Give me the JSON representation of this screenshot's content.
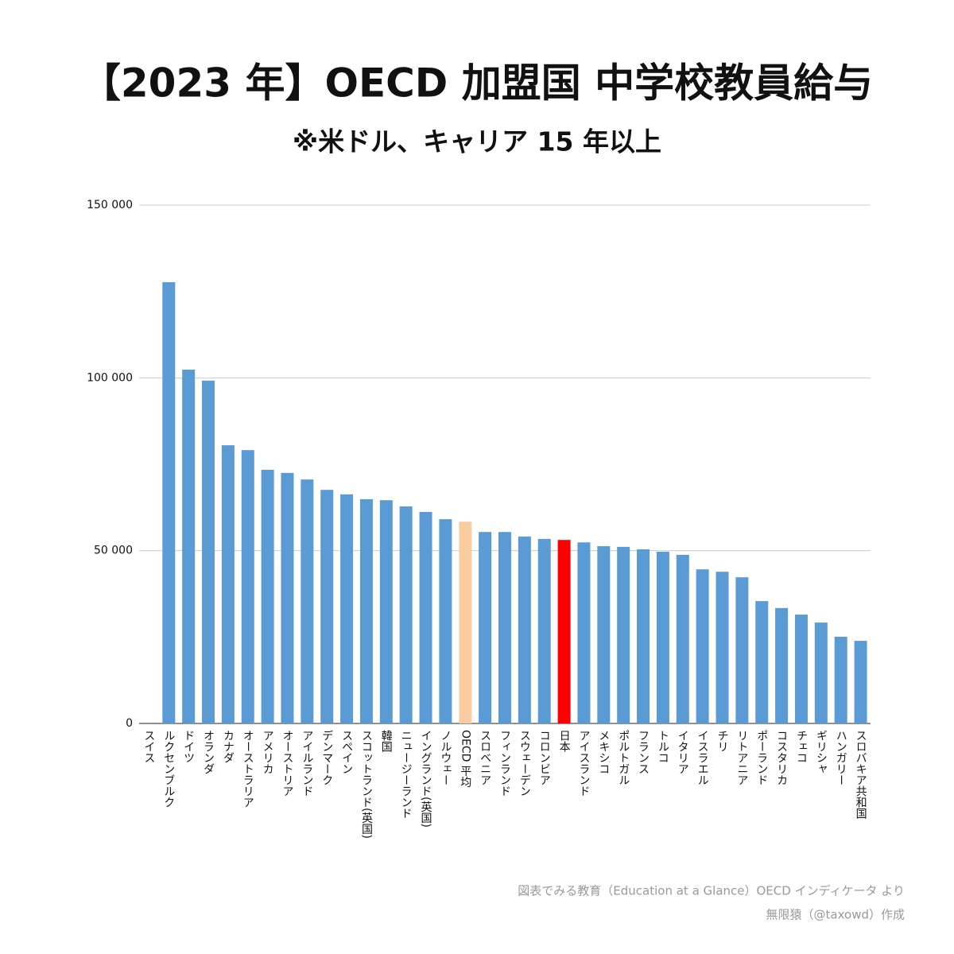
{
  "chart_data": {
    "type": "bar",
    "title": "【2023 年】OECD 加盟国 中学校教員給与",
    "subtitle": "※米ドル、キャリア 15 年以上",
    "categories": [
      "スイス",
      "ルクセンブルク",
      "ドイツ",
      "オランダ",
      "カナダ",
      "オーストラリア",
      "アメリカ",
      "オーストリア",
      "アイルランド",
      "デンマーク",
      "スペイン",
      "スコットランド(英国)",
      "韓国",
      "ニュージーランド",
      "イングランド(英国)",
      "ノルウェー",
      "OECD 平均",
      "スロベニア",
      "フィンランド",
      "スウェーデン",
      "コロンビア",
      "日本",
      "アイスランド",
      "メキシコ",
      "ポルトガル",
      "フランス",
      "トルコ",
      "イタリア",
      "イスラエル",
      "チリ",
      "リトアニア",
      "ポーランド",
      "コスタリカ",
      "チェコ",
      "ギリシャ",
      "ハンガリー",
      "スロバキア共和国"
    ],
    "values": [
      null,
      127700,
      102400,
      99200,
      80500,
      79100,
      73400,
      72500,
      70600,
      67600,
      66300,
      64900,
      64600,
      62800,
      61200,
      59100,
      58400,
      55400,
      55400,
      54100,
      53400,
      53100,
      52400,
      51300,
      51100,
      50400,
      49700,
      48800,
      44600,
      43900,
      42300,
      35400,
      33400,
      31500,
      29200,
      25100,
      23900
    ],
    "color": "#5b9bd5",
    "colors": [
      null,
      "#5b9bd5",
      "#5b9bd5",
      "#5b9bd5",
      "#5b9bd5",
      "#5b9bd5",
      "#5b9bd5",
      "#5b9bd5",
      "#5b9bd5",
      "#5b9bd5",
      "#5b9bd5",
      "#5b9bd5",
      "#5b9bd5",
      "#5b9bd5",
      "#5b9bd5",
      "#5b9bd5",
      "#f8cba0",
      "#5b9bd5",
      "#5b9bd5",
      "#5b9bd5",
      "#5b9bd5",
      "#ff0000",
      "#5b9bd5",
      "#5b9bd5",
      "#5b9bd5",
      "#5b9bd5",
      "#5b9bd5",
      "#5b9bd5",
      "#5b9bd5",
      "#5b9bd5",
      "#5b9bd5",
      "#5b9bd5",
      "#5b9bd5",
      "#5b9bd5",
      "#5b9bd5",
      "#5b9bd5",
      "#5b9bd5"
    ],
    "ylim": [
      0,
      150000
    ],
    "yticks": [
      0,
      {
        "value": 50000,
        "label": "50 000"
      },
      {
        "value": 100000,
        "label": "100 000"
      },
      {
        "value": 150000,
        "label": "150 000"
      }
    ],
    "grid": true,
    "source": [
      "図表でみる教育（Education at a Glance）OECD インディケータ より",
      "無限猿（@taxowd）作成"
    ]
  }
}
